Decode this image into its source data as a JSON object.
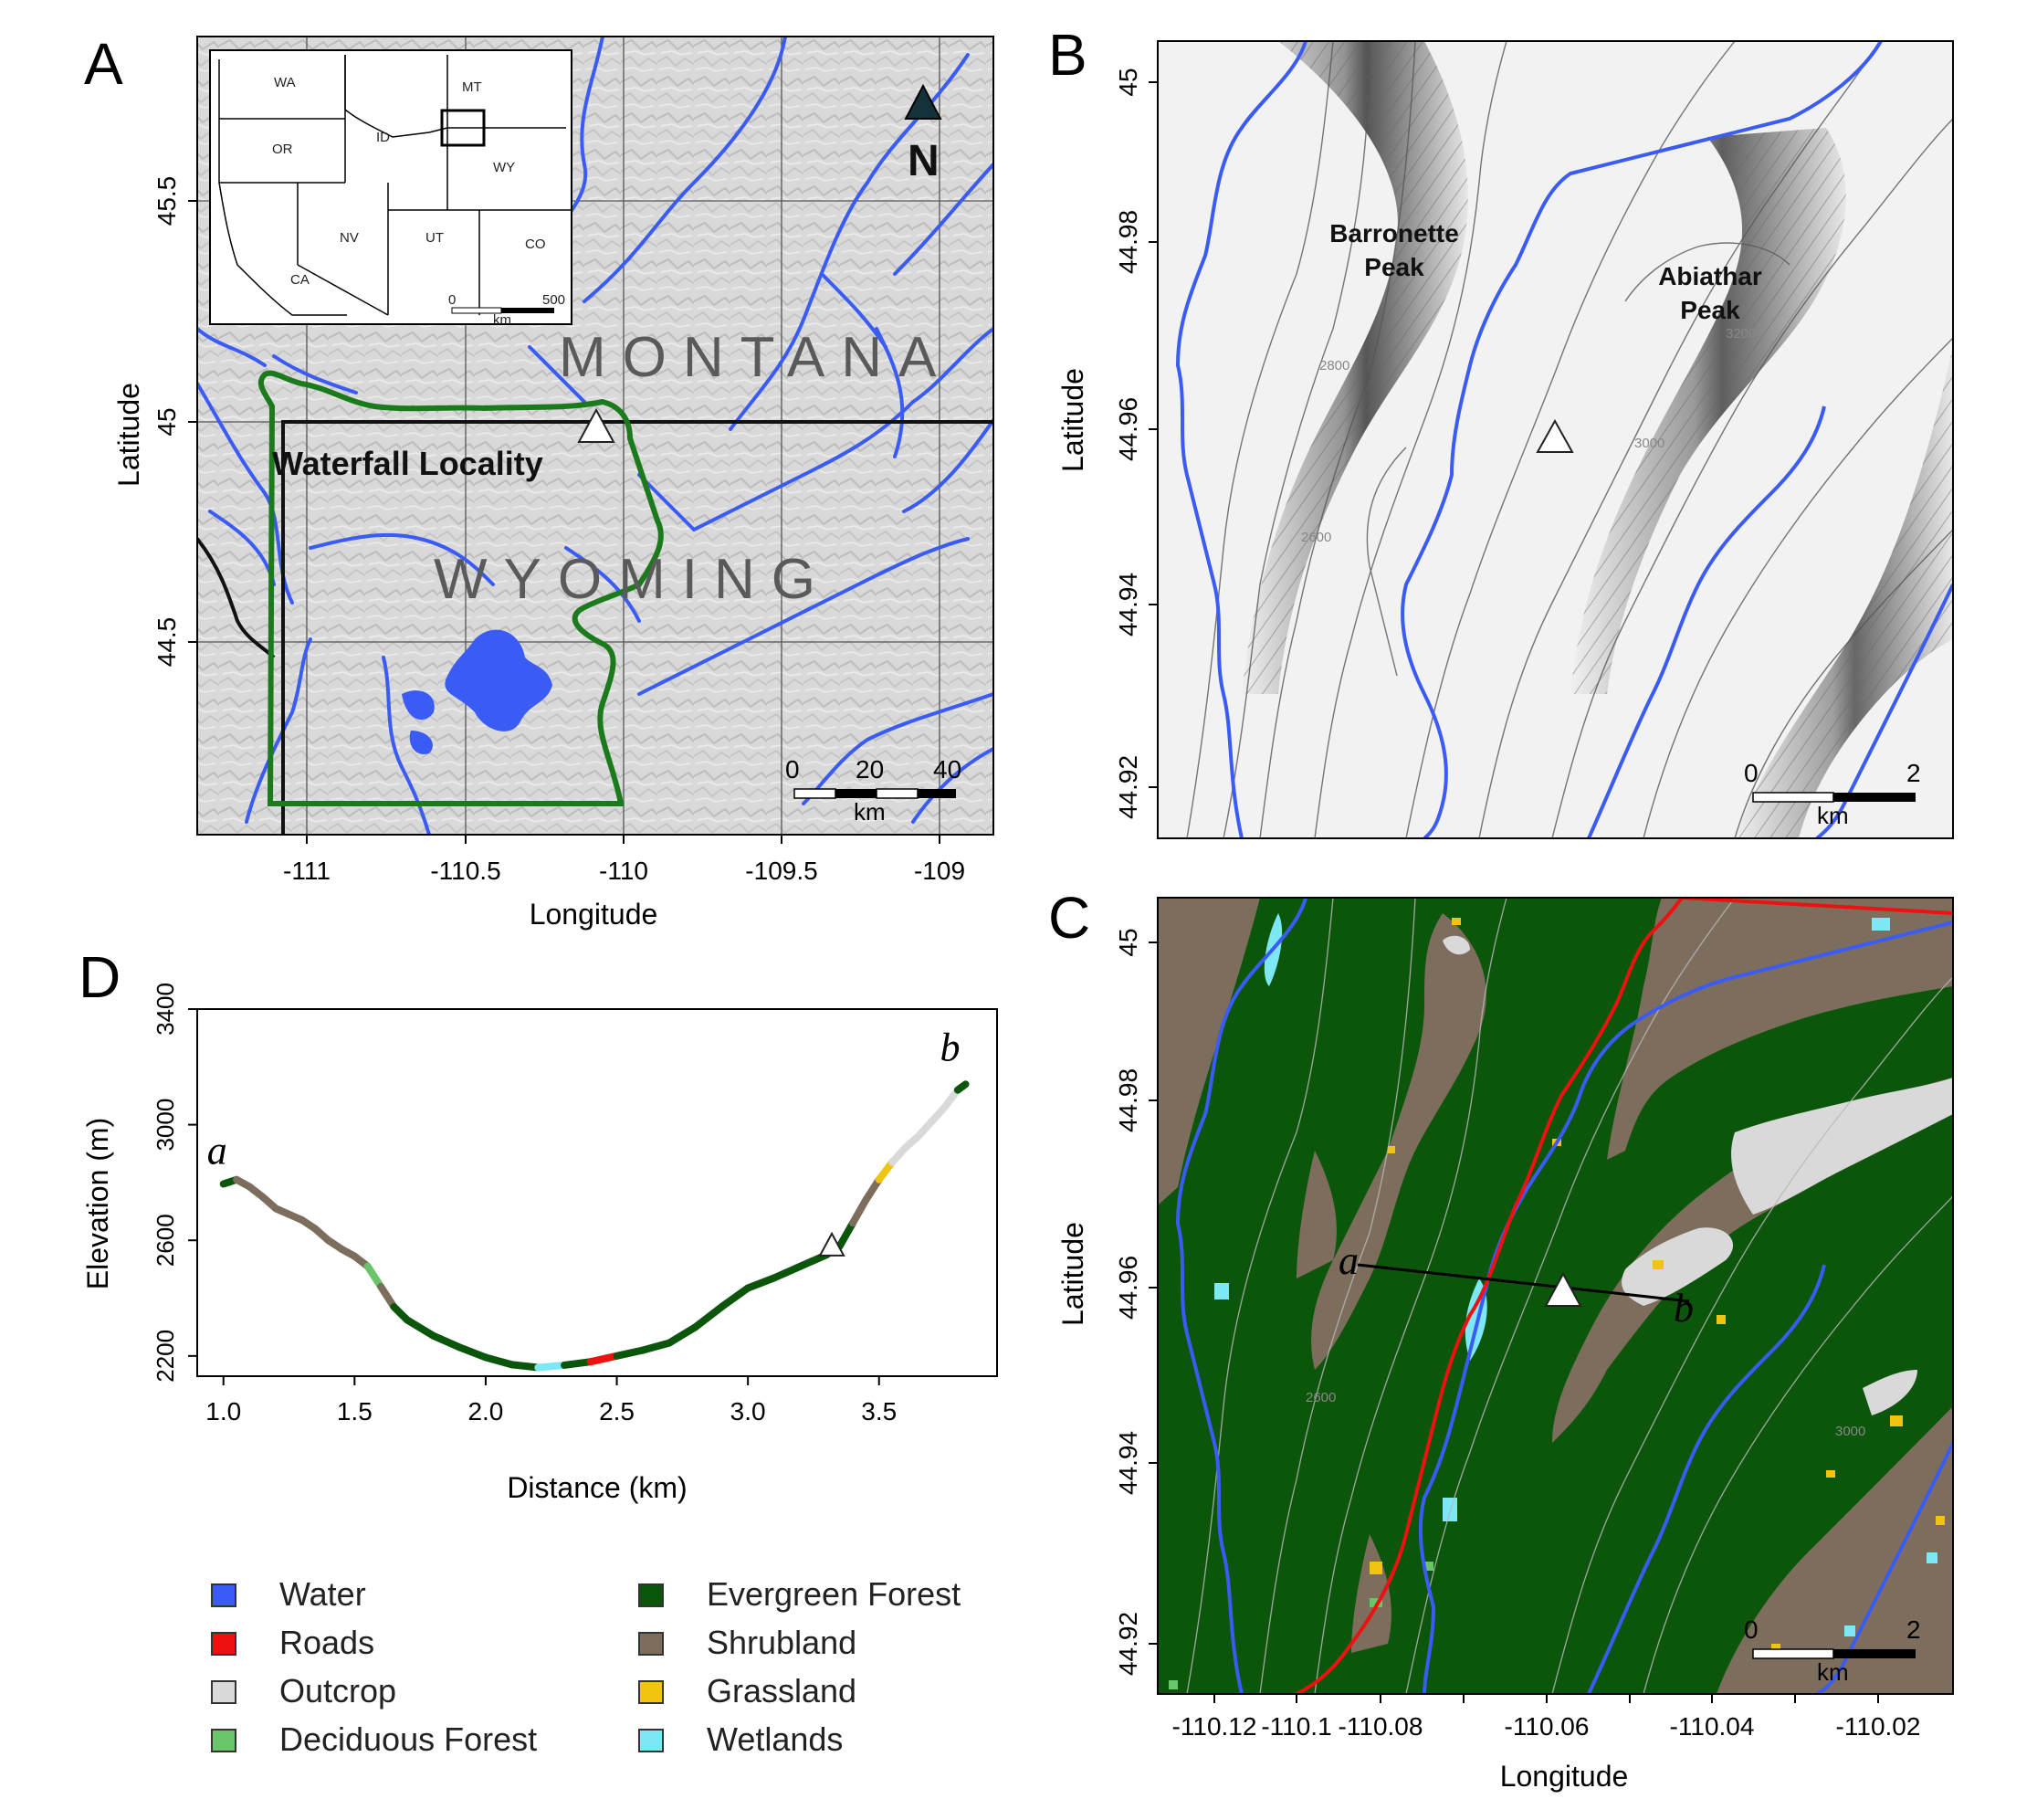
{
  "panels": {
    "A": {
      "letter": "A",
      "xlabel": "Longitude",
      "ylabel": "Latitude",
      "xticks": [
        "-111",
        "-110.5",
        "-110",
        "-109.5",
        "-109"
      ],
      "yticks": [
        "45.5",
        "45",
        "44.5"
      ],
      "state_labels_big": [
        "MONTANA",
        "WYOMING"
      ],
      "locality_label": "Waterfall Locality",
      "north_label": "N",
      "scalebar": {
        "ticks": [
          "0",
          "20",
          "40"
        ],
        "unit": "km"
      },
      "inset": {
        "states": [
          "WA",
          "OR",
          "ID",
          "MT",
          "WY",
          "NV",
          "UT",
          "CO",
          "CA"
        ],
        "scalebar": {
          "ticks": [
            "0",
            "500"
          ],
          "unit": "km"
        }
      }
    },
    "B": {
      "letter": "B",
      "ylabel": "Latitude",
      "yticks": [
        "45",
        "44.98",
        "44.96",
        "44.94",
        "44.92"
      ],
      "peaks": [
        "Barronette Peak",
        "Abiathar Peak"
      ],
      "peak_lines": [
        [
          "Barronette",
          "Peak"
        ],
        [
          "Abiathar",
          "Peak"
        ]
      ],
      "contour_labels": [
        "2800",
        "2600",
        "3200",
        "3000"
      ],
      "scalebar": {
        "ticks": [
          "0",
          "2"
        ],
        "unit": "km"
      }
    },
    "C": {
      "letter": "C",
      "xlabel": "Longitude",
      "ylabel": "Latitude",
      "xticks": [
        "-110.12",
        "-110.1",
        "-110.08",
        "-110.06",
        "-110.04",
        "-110.02"
      ],
      "yticks": [
        "45",
        "44.98",
        "44.96",
        "44.94",
        "44.92"
      ],
      "transect_labels": [
        "a",
        "b"
      ],
      "contour_labels": [
        "2600",
        "3000"
      ],
      "scalebar": {
        "ticks": [
          "0",
          "2"
        ],
        "unit": "km"
      }
    },
    "D": {
      "letter": "D",
      "xlabel": "Distance (km)",
      "ylabel": "Elevation (m)",
      "xticks": [
        "1.0",
        "1.5",
        "2.0",
        "2.5",
        "3.0",
        "3.5"
      ],
      "yticks": [
        "3400",
        "3000",
        "2600",
        "2200"
      ],
      "end_labels": [
        "a",
        "b"
      ]
    }
  },
  "legend": [
    {
      "label": "Water",
      "color": "#3b5bf5"
    },
    {
      "label": "Roads",
      "color": "#ee1111"
    },
    {
      "label": "Outcrop",
      "color": "#d9d9d9"
    },
    {
      "label": "Deciduous Forest",
      "color": "#6ac46a"
    },
    {
      "label": "Evergreen Forest",
      "color": "#0b560b"
    },
    {
      "label": "Shrubland",
      "color": "#7d6d5c"
    },
    {
      "label": "Grassland",
      "color": "#f1c40f"
    },
    {
      "label": "Wetlands",
      "color": "#7ee7f5"
    }
  ],
  "chart_data": {
    "type": "line",
    "xlabel": "Distance (km)",
    "ylabel": "Elevation (m)",
    "xlim": [
      0.9,
      3.95
    ],
    "ylim": [
      2130,
      3400
    ],
    "series": [
      {
        "x": [
          1.0,
          1.05,
          1.1,
          1.15,
          1.2,
          1.25,
          1.3,
          1.35,
          1.4,
          1.45,
          1.5,
          1.55,
          1.6,
          1.65,
          1.7,
          1.8,
          1.9,
          2.0,
          2.1,
          2.2,
          2.3,
          2.4,
          2.5,
          2.6,
          2.7,
          2.8,
          2.9,
          3.0,
          3.1,
          3.2,
          3.3,
          3.35,
          3.4,
          3.45,
          3.5,
          3.55,
          3.6,
          3.65,
          3.7,
          3.75,
          3.8,
          3.83
        ],
        "y": [
          2795,
          2810,
          2785,
          2750,
          2710,
          2690,
          2670,
          2640,
          2600,
          2570,
          2545,
          2510,
          2440,
          2370,
          2325,
          2270,
          2230,
          2195,
          2170,
          2160,
          2168,
          2180,
          2200,
          2220,
          2245,
          2300,
          2370,
          2435,
          2470,
          2510,
          2550,
          2580,
          2660,
          2740,
          2810,
          2870,
          2920,
          2960,
          3010,
          3060,
          3120,
          3140
        ],
        "landcover": [
          "Evergreen Forest",
          "Shrubland",
          "Shrubland",
          "Shrubland",
          "Shrubland",
          "Shrubland",
          "Shrubland",
          "Shrubland",
          "Shrubland",
          "Shrubland",
          "Shrubland",
          "Deciduous Forest",
          "Shrubland",
          "Evergreen Forest",
          "Evergreen Forest",
          "Evergreen Forest",
          "Evergreen Forest",
          "Evergreen Forest",
          "Evergreen Forest",
          "Wetlands",
          "Evergreen Forest",
          "Roads",
          "Evergreen Forest",
          "Evergreen Forest",
          "Evergreen Forest",
          "Evergreen Forest",
          "Evergreen Forest",
          "Evergreen Forest",
          "Evergreen Forest",
          "Evergreen Forest",
          "Evergreen Forest",
          "Evergreen Forest",
          "Shrubland",
          "Shrubland",
          "Grassland",
          "Outcrop",
          "Outcrop",
          "Outcrop",
          "Outcrop",
          "Outcrop",
          "Evergreen Forest",
          "Outcrop"
        ]
      }
    ],
    "locality_marker": {
      "x": 3.32,
      "y": 2560
    }
  }
}
